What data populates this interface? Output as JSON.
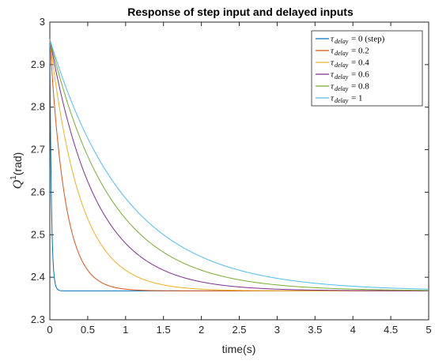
{
  "chart_data": {
    "type": "line",
    "title": "Response of step input and delayed inputs",
    "xlabel": "time(s)",
    "ylabel": "Q",
    "ylabel_superscript": "1",
    "ylabel_unit": "(rad)",
    "xlim": [
      0,
      5
    ],
    "ylim": [
      2.3,
      3.0
    ],
    "xticks": [
      "0",
      "0.5",
      "1",
      "1.5",
      "2",
      "2.5",
      "3",
      "3.5",
      "4",
      "4.5",
      "5"
    ],
    "yticks": [
      "2.3",
      "2.4",
      "2.5",
      "2.6",
      "2.7",
      "2.8",
      "2.9",
      "3"
    ],
    "grid": false,
    "legend_position": "top-right",
    "legend_symbol": "τ",
    "legend_subscript": "delay",
    "y_start": 2.96,
    "y_final": 2.368,
    "series": [
      {
        "name": "= 0 (step)",
        "color": "#0072BD",
        "decay_time_constant": 0.02
      },
      {
        "name": "= 0.2",
        "color": "#D95319",
        "decay_time_constant": 0.2
      },
      {
        "name": "= 0.4",
        "color": "#EDB120",
        "decay_time_constant": 0.4
      },
      {
        "name": "= 0.6",
        "color": "#7E2F8E",
        "decay_time_constant": 0.6
      },
      {
        "name": "= 0.8",
        "color": "#77AC30",
        "decay_time_constant": 0.8
      },
      {
        "name": "= 1",
        "color": "#4DBEEE",
        "decay_time_constant": 1.0
      }
    ]
  }
}
